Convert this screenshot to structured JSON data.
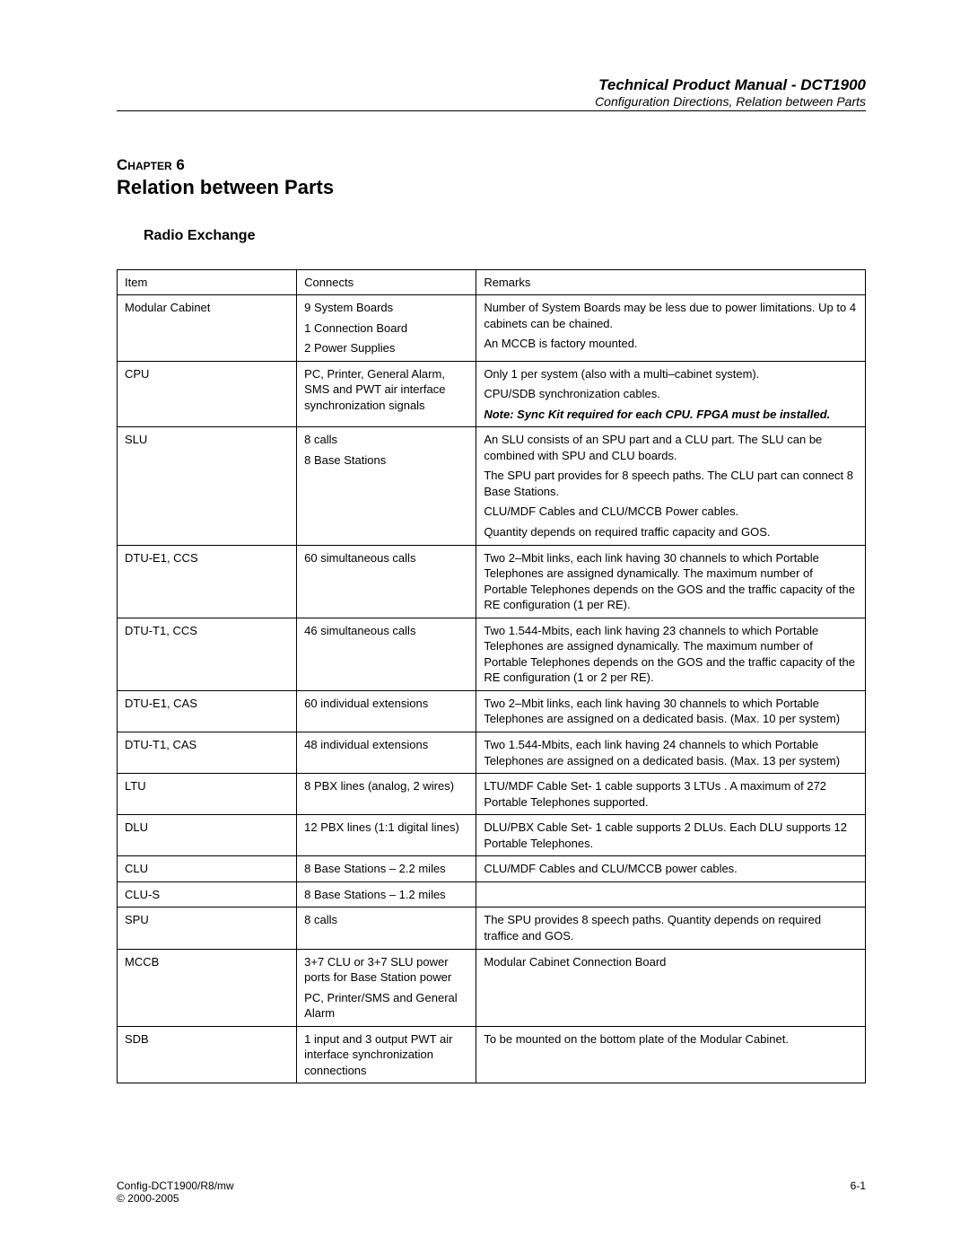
{
  "header": {
    "title": "Technical Product Manual - DCT1900",
    "subtitle": "Configuration Directions, Relation between Parts"
  },
  "chapter": {
    "label": "Chapter 6",
    "title": "Relation between Parts"
  },
  "section": {
    "title": "Radio Exchange"
  },
  "table": {
    "headers": {
      "item": "Item",
      "connects": "Connects",
      "remarks": "Remarks"
    },
    "rows": [
      {
        "item": "Modular Cabinet",
        "connects": [
          "9 System Boards",
          "1 Connection Board",
          "2 Power Supplies"
        ],
        "remarks": [
          {
            "text": "Number of System Boards may be less due to power limitations. Up to 4 cabinets can be chained."
          },
          {
            "text": "An MCCB is factory mounted."
          }
        ]
      },
      {
        "item": "CPU",
        "connects": [
          "PC, Printer, General Alarm, SMS and PWT air interface synchronization signals"
        ],
        "remarks": [
          {
            "text": "Only 1 per system (also with a multi–cabinet system)."
          },
          {
            "text": "CPU/SDB synchronization cables."
          },
          {
            "text": "Note:  Sync Kit required for each CPU.  FPGA must  be installed.",
            "style": "note"
          }
        ]
      },
      {
        "item": "SLU",
        "connects": [
          "8 calls",
          "8 Base Stations"
        ],
        "remarks": [
          {
            "text": "An SLU consists of an SPU part and a CLU part. The SLU can be combined with SPU and CLU boards."
          },
          {
            "text": "The SPU part provides for 8 speech paths. The CLU part can connect 8 Base Stations."
          },
          {
            "text": "CLU/MDF Cables and CLU/MCCB Power cables."
          },
          {
            "text": "Quantity depends on required traffic capacity and GOS."
          }
        ]
      },
      {
        "item": "DTU-E1, CCS",
        "connects": [
          "60 simultaneous calls"
        ],
        "remarks": [
          {
            "text": "Two 2–Mbit links, each link having 30 channels to which Portable Telephones are assigned dynamically. The maximum number of Portable Telephones depends on the GOS and the traffic capacity of the RE configuration (1 per RE)."
          }
        ]
      },
      {
        "item": "DTU-T1, CCS",
        "connects": [
          "46 simultaneous calls"
        ],
        "remarks": [
          {
            "text": "Two 1.544-Mbits, each link having 23 channels to which Portable Telephones are assigned dynamically. The maximum number of Portable Telephones depends on the GOS and the traffic capacity of the RE configuration (1 or 2 per RE)."
          }
        ]
      },
      {
        "item": "DTU-E1, CAS",
        "connects": [
          "60 individual extensions"
        ],
        "remarks": [
          {
            "text": "Two 2–Mbit links, each link having 30 channels to which Portable Telephones are assigned on a dedicated basis. (Max. 10 per system)"
          }
        ]
      },
      {
        "item": "DTU-T1, CAS",
        "connects": [
          "48 individual extensions"
        ],
        "remarks": [
          {
            "text": "Two 1.544-Mbits, each link having 24 channels to which Portable Telephones are assigned on a dedicated basis.  (Max. 13 per system)"
          }
        ]
      },
      {
        "item": "LTU",
        "connects": [
          "8 PBX lines (analog, 2 wires)"
        ],
        "remarks": [
          {
            "text": "LTU/MDF Cable Set- 1 cable supports 3 LTUs . A maximum of 272 Portable Telephones supported."
          }
        ]
      },
      {
        "item": "DLU",
        "connects": [
          "12 PBX lines (1:1 digital lines)"
        ],
        "remarks": [
          {
            "text": "DLU/PBX Cable Set- 1 cable supports 2 DLUs. Each DLU supports 12 Portable Telephones."
          }
        ]
      },
      {
        "item": "CLU",
        "connects": [
          "8 Base Stations – 2.2 miles"
        ],
        "remarks": [
          {
            "text": "CLU/MDF Cables and CLU/MCCB power cables."
          }
        ]
      },
      {
        "item": "CLU-S",
        "connects": [
          "8 Base Stations – 1.2 miles"
        ],
        "remarks": []
      },
      {
        "item": "SPU",
        "connects": [
          "8 calls"
        ],
        "remarks": [
          {
            "text": "The SPU provides 8 speech paths.  Quantity depends on required traffice and GOS."
          }
        ]
      },
      {
        "item": "MCCB",
        "connects": [
          "3+7 CLU or 3+7 SLU power ports for Base Station power",
          "PC, Printer/SMS and General Alarm"
        ],
        "remarks": [
          {
            "text": "Modular Cabinet Connection Board"
          }
        ]
      },
      {
        "item": "SDB",
        "connects": [
          "1 input and 3 output PWT air interface synchronization connections"
        ],
        "remarks": [
          {
            "text": "To be mounted on the bottom plate of the Modular Cabinet."
          }
        ]
      }
    ]
  },
  "footer": {
    "left_line1": "Config-DCT1900/R8/mw",
    "left_line2": "© 2000-2005",
    "right": "6-1"
  }
}
